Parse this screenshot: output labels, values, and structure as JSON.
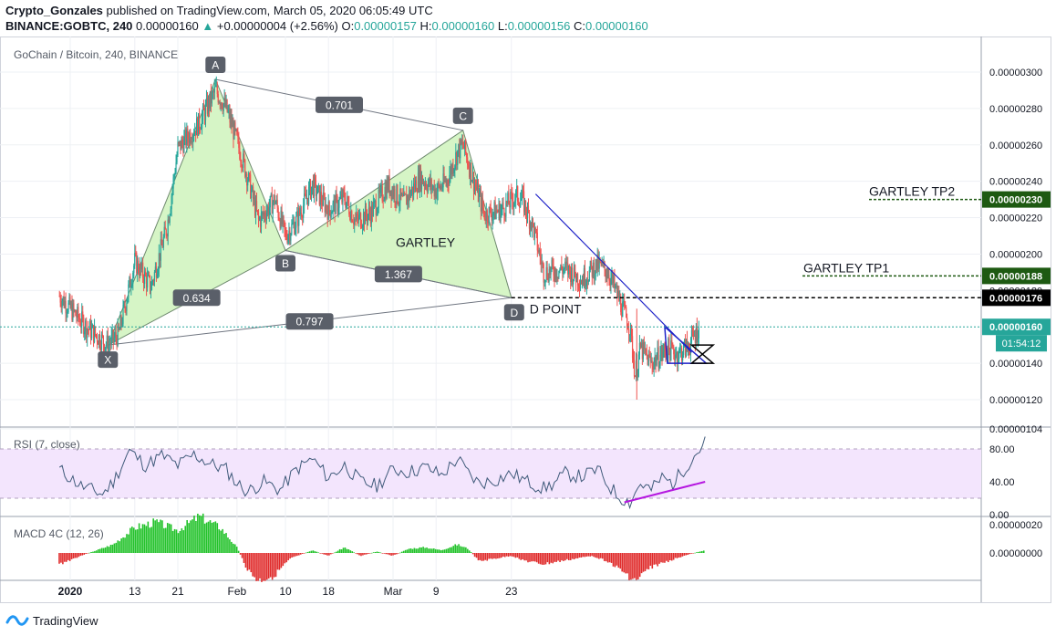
{
  "header": {
    "author": "Crypto_Gonzales",
    "published": "published on TradingView.com, March 05, 2020 06:05:49 UTC",
    "symbol": "BINANCE:GOBTC, 240",
    "last": "0.00000160",
    "change_arrow": "▲",
    "change": "+0.00000004 (+2.56%)",
    "o_label": "O:",
    "o_value": "0.00000157",
    "h_label": "H:",
    "h_value": "0.00000160",
    "l_label": "L:",
    "l_value": "0.00000156",
    "c_label": "C:",
    "c_value": "0.00000160"
  },
  "footer": {
    "brand": "TradingView",
    "logo_icon": "tradingview-logo-icon"
  },
  "colors": {
    "up": "#26a69a",
    "down": "#ef5350",
    "pattern_fill": "#d6f5c6",
    "wedge": "#1e22c8",
    "rsi_band": "#f3e5fd",
    "rsi_line": "#3f5a7a",
    "rsi_trend": "#b517e0",
    "macd_up": "#22c22a",
    "macd_down": "#e02b2b",
    "last_bg": "#26a69a",
    "dpoint_bg": "#000000",
    "tp_bg": "#1e5a12"
  },
  "chart_data": [
    {
      "type": "candlestick",
      "title": "GoChain / Bitcoin, 240, BINANCE",
      "x_ticks": [
        "2020",
        "13",
        "21",
        "Feb",
        "10",
        "18",
        "Mar",
        "9",
        "23"
      ],
      "y_ticks": [
        "0.00000300",
        "0.00000280",
        "0.00000260",
        "0.00000240",
        "0.00000220",
        "0.00000200",
        "0.00000180",
        "0.00000140",
        "0.00000120",
        "0.00000104"
      ],
      "ylim": [
        1.04e-06,
        3.1e-06
      ],
      "price_path": [
        [
          -2,
          1.77e-06
        ],
        [
          0,
          1.7e-06
        ],
        [
          3,
          1.6e-06
        ],
        [
          7,
          1.5e-06
        ],
        [
          9,
          1.56e-06
        ],
        [
          12,
          1.96e-06
        ],
        [
          15,
          1.82e-06
        ],
        [
          18,
          2.15e-06
        ],
        [
          20,
          2.58e-06
        ],
        [
          24,
          2.72e-06
        ],
        [
          27,
          2.9e-06
        ],
        [
          29,
          2.8e-06
        ],
        [
          31,
          2.62e-06
        ],
        [
          33,
          2.42e-06
        ],
        [
          35,
          2.18e-06
        ],
        [
          38,
          2.3e-06
        ],
        [
          40,
          2.1e-06
        ],
        [
          42,
          2.18e-06
        ],
        [
          45,
          2.38e-06
        ],
        [
          48,
          2.24e-06
        ],
        [
          51,
          2.31e-06
        ],
        [
          53,
          2.18e-06
        ],
        [
          56,
          2.23e-06
        ],
        [
          59,
          2.38e-06
        ],
        [
          62,
          2.28e-06
        ],
        [
          65,
          2.42e-06
        ],
        [
          68,
          2.35e-06
        ],
        [
          70,
          2.4e-06
        ],
        [
          72,
          2.56e-06
        ],
        [
          73,
          2.6e-06
        ],
        [
          75,
          2.4e-06
        ],
        [
          77,
          2.22e-06
        ],
        [
          80,
          2.24e-06
        ],
        [
          83,
          2.32e-06
        ],
        [
          84,
          2.3e-06
        ],
        [
          86,
          2.15e-06
        ],
        [
          88,
          1.9e-06
        ],
        [
          92,
          1.92e-06
        ],
        [
          95,
          1.86e-06
        ],
        [
          98,
          1.94e-06
        ],
        [
          100,
          1.9e-06
        ],
        [
          102,
          1.75e-06
        ],
        [
          104,
          1.6e-06
        ],
        [
          105,
          1.34e-06
        ],
        [
          106,
          1.48e-06
        ],
        [
          108,
          1.4e-06
        ],
        [
          111,
          1.48e-06
        ],
        [
          113,
          1.45e-06
        ],
        [
          115,
          1.5e-06
        ],
        [
          117,
          1.6e-06
        ]
      ],
      "last_price": "0.00000160",
      "countdown": "01:54:12",
      "d_point_price": "0.00000176",
      "targets": [
        {
          "label": "GARTLEY TP1",
          "price": "0.00000188"
        },
        {
          "label": "GARTLEY TP2",
          "price": "0.00000230"
        }
      ],
      "pattern": {
        "name": "GARTLEY",
        "d_label": "D POINT",
        "points": [
          {
            "label": "X",
            "x": 7,
            "price": 1.5e-06
          },
          {
            "label": "A",
            "x": 27,
            "price": 2.96e-06
          },
          {
            "label": "B",
            "x": 40,
            "price": 2.02e-06
          },
          {
            "label": "C",
            "x": 73,
            "price": 2.68e-06
          },
          {
            "label": "D",
            "x": 82,
            "price": 1.76e-06
          }
        ],
        "ratios": [
          "0.701",
          "1.367",
          "0.634",
          "0.797"
        ]
      }
    },
    {
      "type": "line",
      "title": "RSI (7, close)",
      "y_ticks": [
        "80.00",
        "40.00",
        "0.00"
      ],
      "ylim": [
        0,
        100
      ],
      "band": [
        20,
        80
      ],
      "path": [
        [
          -2,
          55
        ],
        [
          2,
          35
        ],
        [
          6,
          25
        ],
        [
          8,
          40
        ],
        [
          11,
          78
        ],
        [
          14,
          60
        ],
        [
          17,
          72
        ],
        [
          20,
          60
        ],
        [
          23,
          73
        ],
        [
          26,
          62
        ],
        [
          29,
          55
        ],
        [
          31,
          38
        ],
        [
          33,
          28
        ],
        [
          36,
          40
        ],
        [
          39,
          30
        ],
        [
          42,
          55
        ],
        [
          45,
          68
        ],
        [
          48,
          45
        ],
        [
          51,
          60
        ],
        [
          54,
          40
        ],
        [
          57,
          35
        ],
        [
          60,
          55
        ],
        [
          63,
          52
        ],
        [
          66,
          58
        ],
        [
          69,
          48
        ],
        [
          72,
          68
        ],
        [
          74,
          50
        ],
        [
          76,
          38
        ],
        [
          79,
          42
        ],
        [
          82,
          50
        ],
        [
          85,
          40
        ],
        [
          88,
          32
        ],
        [
          90,
          38
        ],
        [
          92,
          50
        ],
        [
          95,
          46
        ],
        [
          98,
          55
        ],
        [
          100,
          36
        ],
        [
          102,
          22
        ],
        [
          104,
          15
        ],
        [
          106,
          38
        ],
        [
          108,
          30
        ],
        [
          110,
          45
        ],
        [
          112,
          38
        ],
        [
          114,
          55
        ],
        [
          116,
          72
        ],
        [
          118,
          88
        ]
      ],
      "trend": [
        [
          103,
          15
        ],
        [
          118,
          40
        ]
      ]
    },
    {
      "type": "bar",
      "title": "MACD 4C (12, 26)",
      "y_ticks": [
        "0.00000020",
        "0.00000000"
      ],
      "ylim": [
        -2.5e-07,
        3e-07
      ],
      "path": [
        [
          -2,
          -8e-08
        ],
        [
          2,
          -2e-08
        ],
        [
          8,
          6e-08
        ],
        [
          12,
          1.8e-07
        ],
        [
          16,
          2.2e-07
        ],
        [
          20,
          1.6e-07
        ],
        [
          24,
          2.6e-07
        ],
        [
          28,
          1.8e-07
        ],
        [
          31,
          4e-08
        ],
        [
          33,
          -1.2e-07
        ],
        [
          35,
          -2e-07
        ],
        [
          38,
          -1.6e-07
        ],
        [
          41,
          -4e-08
        ],
        [
          45,
          2e-08
        ],
        [
          48,
          -2e-08
        ],
        [
          51,
          4e-08
        ],
        [
          54,
          -2e-08
        ],
        [
          57,
          1e-08
        ],
        [
          60,
          -2e-08
        ],
        [
          63,
          3e-08
        ],
        [
          66,
          4e-08
        ],
        [
          69,
          2e-08
        ],
        [
          72,
          6e-08
        ],
        [
          74,
          3e-08
        ],
        [
          76,
          -6e-08
        ],
        [
          79,
          -4e-08
        ],
        [
          82,
          -2e-08
        ],
        [
          85,
          -6e-08
        ],
        [
          88,
          -8e-08
        ],
        [
          91,
          -6e-08
        ],
        [
          94,
          -4e-08
        ],
        [
          97,
          -2e-08
        ],
        [
          100,
          -6e-08
        ],
        [
          103,
          -1.4e-07
        ],
        [
          105,
          -2e-07
        ],
        [
          108,
          -1e-07
        ],
        [
          111,
          -6e-08
        ],
        [
          114,
          -2e-08
        ],
        [
          117,
          1e-08
        ],
        [
          118,
          2e-08
        ]
      ]
    }
  ]
}
